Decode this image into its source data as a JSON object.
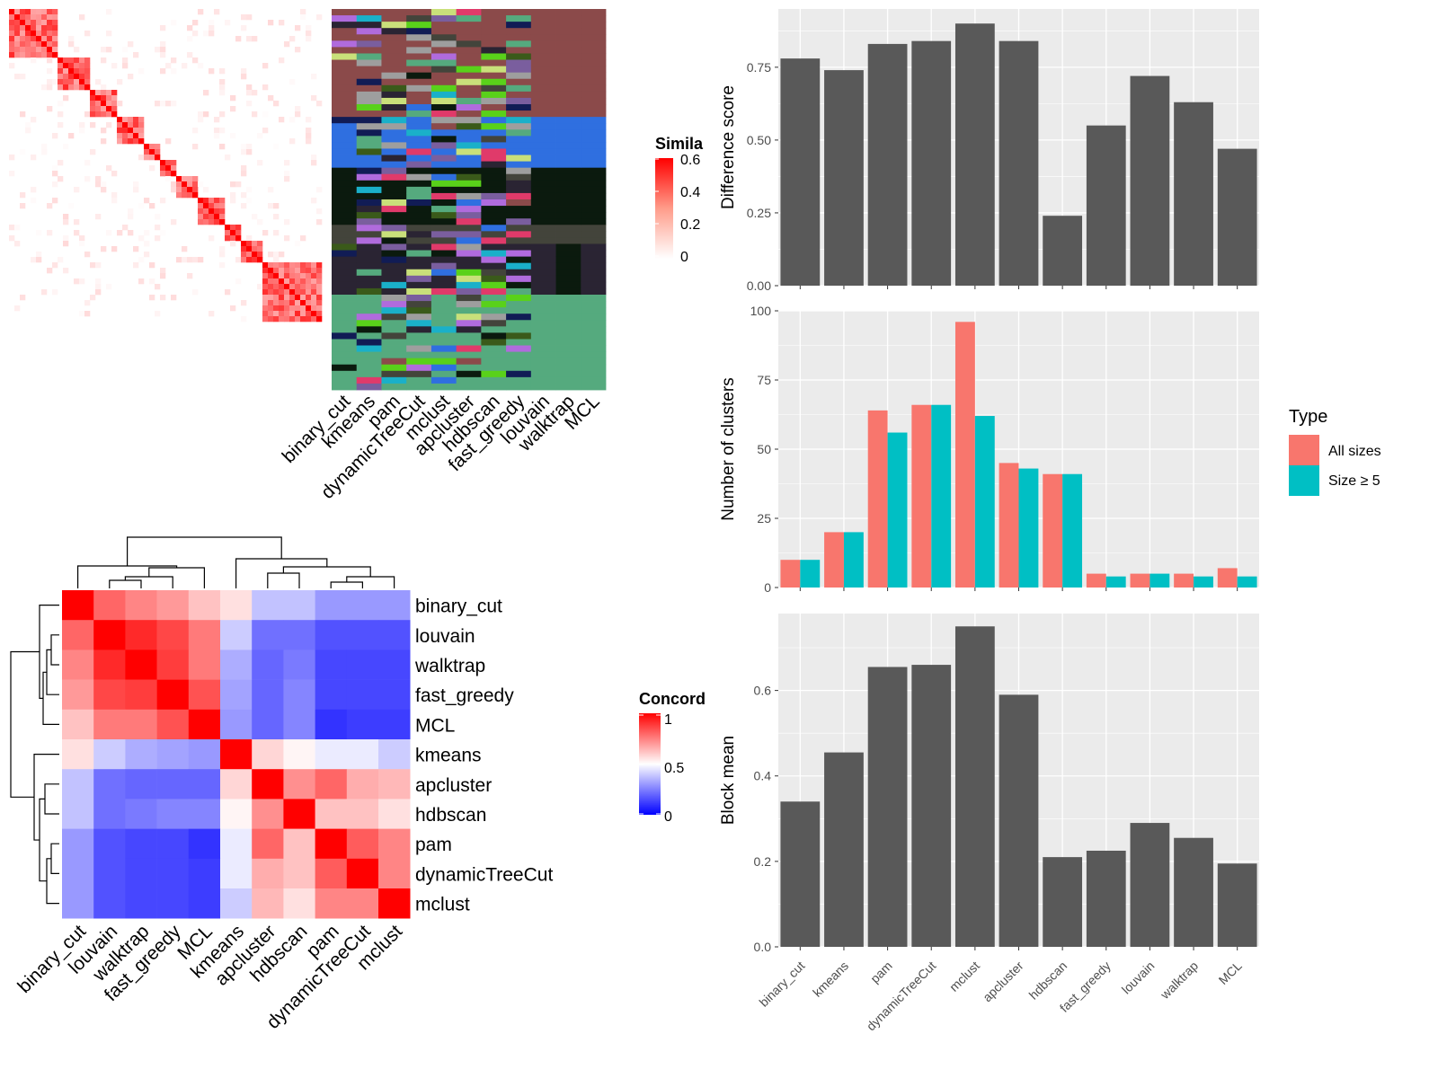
{
  "colors": {
    "panel_bg": "#EBEBEB",
    "grid": "#FFFFFF",
    "bar_gray": "#595959",
    "all_sizes": "#F8766D",
    "size_ge5": "#00BFC4",
    "sim_high": "#FF0000",
    "conc_low": "#0000FF"
  },
  "similarity_legend": {
    "title": "Simila",
    "ticks": [
      "0.6",
      "0.4",
      "0.2",
      "0"
    ]
  },
  "concordance_legend": {
    "title": "Concord",
    "ticks": [
      "1",
      "0.5",
      "0"
    ]
  },
  "method_columns": [
    "binary_cut",
    "kmeans",
    "pam",
    "dynamicTreeCut",
    "mclust",
    "apcluster",
    "hdbscan",
    "fast_greedy",
    "louvain",
    "walktrap",
    "MCL"
  ],
  "concordance_order": [
    "binary_cut",
    "louvain",
    "walktrap",
    "fast_greedy",
    "MCL",
    "kmeans",
    "apcluster",
    "hdbscan",
    "pam",
    "dynamicTreeCut",
    "mclust"
  ],
  "chart_data": [
    {
      "type": "heatmap",
      "name": "similarity matrix",
      "color_scale": [
        0,
        0.6
      ],
      "legend_title": "Simila"
    },
    {
      "type": "heatmap",
      "name": "concordance",
      "rows": [
        "binary_cut",
        "louvain",
        "walktrap",
        "fast_greedy",
        "MCL",
        "kmeans",
        "apcluster",
        "hdbscan",
        "pam",
        "dynamicTreeCut",
        "mclust"
      ],
      "columns": [
        "binary_cut",
        "louvain",
        "walktrap",
        "fast_greedy",
        "MCL",
        "kmeans",
        "apcluster",
        "hdbscan",
        "pam",
        "dynamicTreeCut",
        "mclust"
      ],
      "values": [
        [
          1.0,
          0.8,
          0.74,
          0.7,
          0.62,
          0.56,
          0.38,
          0.38,
          0.3,
          0.3,
          0.3
        ],
        [
          0.8,
          1.0,
          0.92,
          0.86,
          0.76,
          0.4,
          0.22,
          0.22,
          0.16,
          0.16,
          0.16
        ],
        [
          0.74,
          0.92,
          1.0,
          0.88,
          0.76,
          0.34,
          0.2,
          0.24,
          0.14,
          0.14,
          0.14
        ],
        [
          0.7,
          0.86,
          0.88,
          1.0,
          0.84,
          0.32,
          0.2,
          0.26,
          0.14,
          0.14,
          0.14
        ],
        [
          0.62,
          0.76,
          0.76,
          0.84,
          1.0,
          0.3,
          0.2,
          0.26,
          0.1,
          0.12,
          0.12
        ],
        [
          0.56,
          0.4,
          0.34,
          0.32,
          0.3,
          1.0,
          0.58,
          0.52,
          0.46,
          0.46,
          0.4
        ],
        [
          0.38,
          0.22,
          0.2,
          0.2,
          0.2,
          0.58,
          1.0,
          0.72,
          0.8,
          0.66,
          0.64
        ],
        [
          0.38,
          0.22,
          0.24,
          0.26,
          0.26,
          0.52,
          0.72,
          1.0,
          0.62,
          0.62,
          0.56
        ],
        [
          0.3,
          0.16,
          0.14,
          0.14,
          0.1,
          0.46,
          0.8,
          0.62,
          1.0,
          0.82,
          0.74
        ],
        [
          0.3,
          0.16,
          0.14,
          0.14,
          0.12,
          0.46,
          0.66,
          0.62,
          0.82,
          1.0,
          0.74
        ],
        [
          0.3,
          0.16,
          0.14,
          0.14,
          0.12,
          0.4,
          0.64,
          0.56,
          0.74,
          0.74,
          1.0
        ]
      ],
      "color_scale": [
        0,
        1
      ],
      "legend_title": "Concord"
    },
    {
      "type": "bar",
      "categories": [
        "binary_cut",
        "kmeans",
        "pam",
        "dynamicTreeCut",
        "mclust",
        "apcluster",
        "hdbscan",
        "fast_greedy",
        "louvain",
        "walktrap",
        "MCL"
      ],
      "values": [
        0.78,
        0.74,
        0.83,
        0.84,
        0.9,
        0.84,
        0.24,
        0.55,
        0.72,
        0.63,
        0.47
      ],
      "ylabel": "Difference score",
      "ylim": [
        0,
        0.95
      ],
      "yticks": [
        "0.00",
        "0.25",
        "0.50",
        "0.75"
      ],
      "grid": true
    },
    {
      "type": "bar",
      "categories": [
        "binary_cut",
        "kmeans",
        "pam",
        "dynamicTreeCut",
        "mclust",
        "apcluster",
        "hdbscan",
        "fast_greedy",
        "louvain",
        "walktrap",
        "MCL"
      ],
      "series": [
        {
          "name": "All sizes",
          "values": [
            10,
            20,
            64,
            66,
            96,
            45,
            41,
            5,
            5,
            5,
            7
          ]
        },
        {
          "name": "Size ≥ 5",
          "values": [
            10,
            20,
            56,
            66,
            62,
            43,
            41,
            4,
            5,
            4,
            4
          ]
        }
      ],
      "ylabel": "Number of clusters",
      "ylim": [
        0,
        100
      ],
      "yticks": [
        "0",
        "25",
        "50",
        "75",
        "100"
      ],
      "legend_title": "Type",
      "legend_position": "right",
      "grid": true
    },
    {
      "type": "bar",
      "categories": [
        "binary_cut",
        "kmeans",
        "pam",
        "dynamicTreeCut",
        "mclust",
        "apcluster",
        "hdbscan",
        "fast_greedy",
        "louvain",
        "walktrap",
        "MCL"
      ],
      "values": [
        0.34,
        0.455,
        0.655,
        0.66,
        0.75,
        0.59,
        0.21,
        0.225,
        0.29,
        0.255,
        0.195
      ],
      "ylabel": "Block mean",
      "ylim": [
        0,
        0.78
      ],
      "yticks": [
        "0.0",
        "0.2",
        "0.4",
        "0.6"
      ],
      "grid": true
    }
  ]
}
